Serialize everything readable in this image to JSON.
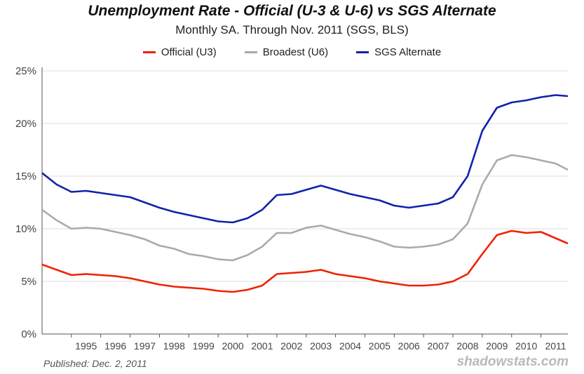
{
  "chart_data": {
    "type": "line",
    "title": "Unemployment Rate - Official (U-3 & U-6) vs SGS Alternate",
    "subtitle": "Monthly SA. Through Nov. 2011  (SGS, BLS)",
    "legend_position": "top",
    "grid": true,
    "x_range": [
      1994.0,
      2011.917
    ],
    "ylim": [
      0,
      25
    ],
    "y_ticks": [
      0,
      5,
      10,
      15,
      20,
      25
    ],
    "y_tick_labels": [
      "0%",
      "5%",
      "10%",
      "15%",
      "20%",
      "25%"
    ],
    "x_tick_labels": [
      "1995",
      "1996",
      "1997",
      "1998",
      "1999",
      "2000",
      "2001",
      "2002",
      "2003",
      "2004",
      "2005",
      "2006",
      "2007",
      "2008",
      "2009",
      "2010",
      "2011"
    ],
    "x": [
      1994.0,
      1994.5,
      1995.0,
      1995.5,
      1996.0,
      1996.5,
      1997.0,
      1997.5,
      1998.0,
      1998.5,
      1999.0,
      1999.5,
      2000.0,
      2000.5,
      2001.0,
      2001.5,
      2002.0,
      2002.5,
      2003.0,
      2003.5,
      2004.0,
      2004.5,
      2005.0,
      2005.5,
      2006.0,
      2006.5,
      2007.0,
      2007.5,
      2008.0,
      2008.5,
      2009.0,
      2009.5,
      2010.0,
      2010.5,
      2011.0,
      2011.5,
      2011.917
    ],
    "series": [
      {
        "name": "Official (U3)",
        "color": "#ee2200",
        "values": [
          6.6,
          6.1,
          5.6,
          5.7,
          5.6,
          5.5,
          5.3,
          5.0,
          4.7,
          4.5,
          4.4,
          4.3,
          4.1,
          4.0,
          4.2,
          4.6,
          5.7,
          5.8,
          5.9,
          6.1,
          5.7,
          5.5,
          5.3,
          5.0,
          4.8,
          4.6,
          4.6,
          4.7,
          5.0,
          5.7,
          7.6,
          9.4,
          9.8,
          9.6,
          9.7,
          9.1,
          8.6
        ]
      },
      {
        "name": "Broadest (U6)",
        "color": "#aaaaaa",
        "values": [
          11.8,
          10.8,
          10.0,
          10.1,
          10.0,
          9.7,
          9.4,
          9.0,
          8.4,
          8.1,
          7.6,
          7.4,
          7.1,
          7.0,
          7.5,
          8.3,
          9.6,
          9.6,
          10.1,
          10.3,
          9.9,
          9.5,
          9.2,
          8.8,
          8.3,
          8.2,
          8.3,
          8.5,
          9.0,
          10.5,
          14.2,
          16.5,
          17.0,
          16.8,
          16.5,
          16.2,
          15.6
        ]
      },
      {
        "name": "SGS Alternate",
        "color": "#1122aa",
        "values": [
          15.3,
          14.2,
          13.5,
          13.6,
          13.4,
          13.2,
          13.0,
          12.5,
          12.0,
          11.6,
          11.3,
          11.0,
          10.7,
          10.6,
          11.0,
          11.8,
          13.2,
          13.3,
          13.7,
          14.1,
          13.7,
          13.3,
          13.0,
          12.7,
          12.2,
          12.0,
          12.2,
          12.4,
          13.0,
          15.0,
          19.3,
          21.5,
          22.0,
          22.2,
          22.5,
          22.7,
          22.6
        ]
      }
    ]
  },
  "footer": {
    "published": "Published: Dec. 2, 2011",
    "source": "shadowstats.com"
  }
}
